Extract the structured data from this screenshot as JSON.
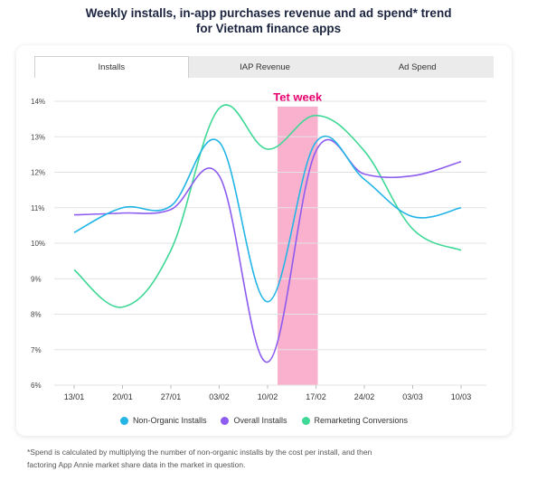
{
  "title": {
    "line1": "Weekly installs, in-app purchases revenue and ad spend* trend",
    "line2": "for Vietnam finance apps"
  },
  "tabs": [
    {
      "label": "Installs",
      "active": true
    },
    {
      "label": "IAP Revenue",
      "active": false
    },
    {
      "label": "Ad Spend",
      "active": false
    }
  ],
  "chart_data": {
    "type": "line",
    "x": [
      "13/01",
      "20/01",
      "27/01",
      "03/02",
      "10/02",
      "17/02",
      "24/02",
      "03/03",
      "10/03"
    ],
    "ylim": [
      6,
      14
    ],
    "yticks": [
      "6%",
      "7%",
      "8%",
      "9%",
      "10%",
      "11%",
      "12%",
      "13%",
      "14%"
    ],
    "highlight": {
      "label": "Tet week",
      "from_week": "10/02",
      "to_week": "17/02",
      "color": "#f9a8c9",
      "label_color": "#e8006f"
    },
    "series": [
      {
        "name": "Non-Organic Installs",
        "color": "#22b5e6",
        "values": [
          10.3,
          11.0,
          11.05,
          12.85,
          8.35,
          12.85,
          11.8,
          10.75,
          11.0
        ]
      },
      {
        "name": "Overall Installs",
        "color": "#8d5cf0",
        "values": [
          10.8,
          10.85,
          10.95,
          11.9,
          6.65,
          12.6,
          11.95,
          11.9,
          12.3
        ]
      },
      {
        "name": "Remarketing Conversions",
        "color": "#40d897",
        "values": [
          9.25,
          8.2,
          9.8,
          13.8,
          12.65,
          13.6,
          12.6,
          10.4,
          9.8
        ]
      }
    ],
    "grid": true,
    "legend_position": "bottom"
  },
  "footnote": {
    "line1": "*Spend is calculated by multiplying the number of non-organic installs by the cost per install, and then",
    "line2": "factoring App Annie market share data in the market in question."
  }
}
